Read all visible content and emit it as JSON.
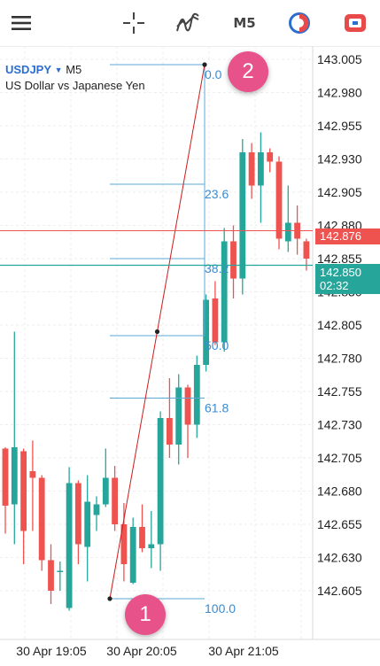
{
  "toolbar": {
    "menu_icon": "hamburger-menu-icon",
    "crosshair_icon": "crosshair-icon",
    "indicators_icon": "indicators-wave-icon",
    "timeframe": "M5",
    "chart_type_icon": "pie-chart-icon",
    "trade_icon": "trade-toggle-icon"
  },
  "header": {
    "symbol": "USDJPY",
    "timeframe": "M5",
    "description": "US Dollar vs Japanese Yen"
  },
  "price_tags": {
    "bid": "142.876",
    "ask": "142.850",
    "countdown": "02:32"
  },
  "markers": {
    "start": "1",
    "end": "2"
  },
  "colors": {
    "bull": "#26a69a",
    "bear": "#ef5350",
    "fib": "#5ba8d6",
    "trendline": "#d01a1a",
    "bid_line": "#ef5350",
    "ask_line": "#26a69a",
    "badge": "#e8528a"
  },
  "chart_data": {
    "type": "candlestick",
    "y_ticks": [
      "143.005",
      "142.980",
      "142.955",
      "142.930",
      "142.905",
      "142.880",
      "142.855",
      "142.830",
      "142.805",
      "142.780",
      "142.755",
      "142.730",
      "142.705",
      "142.680",
      "142.655",
      "142.630",
      "142.605"
    ],
    "x_ticks": [
      "30 Apr 19:05",
      "30 Apr 20:05",
      "30 Apr 21:05"
    ],
    "fibonacci": {
      "levels": [
        {
          "label": "0.0",
          "value": 143.001
        },
        {
          "label": "23.6",
          "value": 142.911
        },
        {
          "label": "38.2",
          "value": 142.855
        },
        {
          "label": "50.0",
          "value": 142.797
        },
        {
          "label": "61.8",
          "value": 142.75
        },
        {
          "label": "100.0",
          "value": 142.599
        }
      ]
    },
    "trendline": [
      {
        "time": "30 Apr 20:00",
        "price": 142.599
      },
      {
        "time": "30 Apr 20:55",
        "price": 143.001
      }
    ],
    "bid": 142.876,
    "ask": 142.85,
    "candles": [
      {
        "o": 142.712,
        "h": 142.713,
        "l": 142.648,
        "c": 142.669
      },
      {
        "o": 142.67,
        "h": 142.8,
        "l": 142.64,
        "c": 142.713
      },
      {
        "o": 142.71,
        "h": 142.712,
        "l": 142.625,
        "c": 142.65
      },
      {
        "o": 142.695,
        "h": 142.718,
        "l": 142.65,
        "c": 142.69
      },
      {
        "o": 142.69,
        "h": 142.692,
        "l": 142.62,
        "c": 142.628
      },
      {
        "o": 142.628,
        "h": 142.64,
        "l": 142.595,
        "c": 142.605
      },
      {
        "o": 142.62,
        "h": 142.627,
        "l": 142.605,
        "c": 142.62
      },
      {
        "o": 142.592,
        "h": 142.698,
        "l": 142.59,
        "c": 142.686
      },
      {
        "o": 142.686,
        "h": 142.688,
        "l": 142.625,
        "c": 142.64
      },
      {
        "o": 142.638,
        "h": 142.692,
        "l": 142.612,
        "c": 142.672
      },
      {
        "o": 142.662,
        "h": 142.676,
        "l": 142.65,
        "c": 142.67
      },
      {
        "o": 142.67,
        "h": 142.712,
        "l": 142.668,
        "c": 142.69
      },
      {
        "o": 142.69,
        "h": 142.699,
        "l": 142.65,
        "c": 142.655
      },
      {
        "o": 142.655,
        "h": 142.671,
        "l": 142.612,
        "c": 142.625
      },
      {
        "o": 142.611,
        "h": 142.66,
        "l": 142.61,
        "c": 142.653
      },
      {
        "o": 142.653,
        "h": 142.67,
        "l": 142.634,
        "c": 142.637
      },
      {
        "o": 142.637,
        "h": 142.665,
        "l": 142.622,
        "c": 142.64
      },
      {
        "o": 142.64,
        "h": 142.74,
        "l": 142.62,
        "c": 142.735
      },
      {
        "o": 142.735,
        "h": 142.765,
        "l": 142.705,
        "c": 142.715
      },
      {
        "o": 142.715,
        "h": 142.768,
        "l": 142.7,
        "c": 142.758
      },
      {
        "o": 142.758,
        "h": 142.76,
        "l": 142.705,
        "c": 142.73
      },
      {
        "o": 142.73,
        "h": 142.782,
        "l": 142.72,
        "c": 142.775
      },
      {
        "o": 142.775,
        "h": 142.828,
        "l": 142.77,
        "c": 142.824
      },
      {
        "o": 142.825,
        "h": 142.838,
        "l": 142.79,
        "c": 142.792
      },
      {
        "o": 142.792,
        "h": 142.878,
        "l": 142.785,
        "c": 142.868
      },
      {
        "o": 142.868,
        "h": 142.88,
        "l": 142.825,
        "c": 142.84
      },
      {
        "o": 142.84,
        "h": 142.945,
        "l": 142.828,
        "c": 142.935
      },
      {
        "o": 142.935,
        "h": 142.942,
        "l": 142.9,
        "c": 142.91
      },
      {
        "o": 142.91,
        "h": 142.95,
        "l": 142.882,
        "c": 142.935
      },
      {
        "o": 142.935,
        "h": 142.938,
        "l": 142.92,
        "c": 142.928
      },
      {
        "o": 142.928,
        "h": 142.932,
        "l": 142.862,
        "c": 142.87
      },
      {
        "o": 142.868,
        "h": 142.91,
        "l": 142.86,
        "c": 142.882
      },
      {
        "o": 142.882,
        "h": 142.895,
        "l": 142.858,
        "c": 142.87
      },
      {
        "o": 142.868,
        "h": 142.87,
        "l": 142.846,
        "c": 142.855
      }
    ]
  }
}
